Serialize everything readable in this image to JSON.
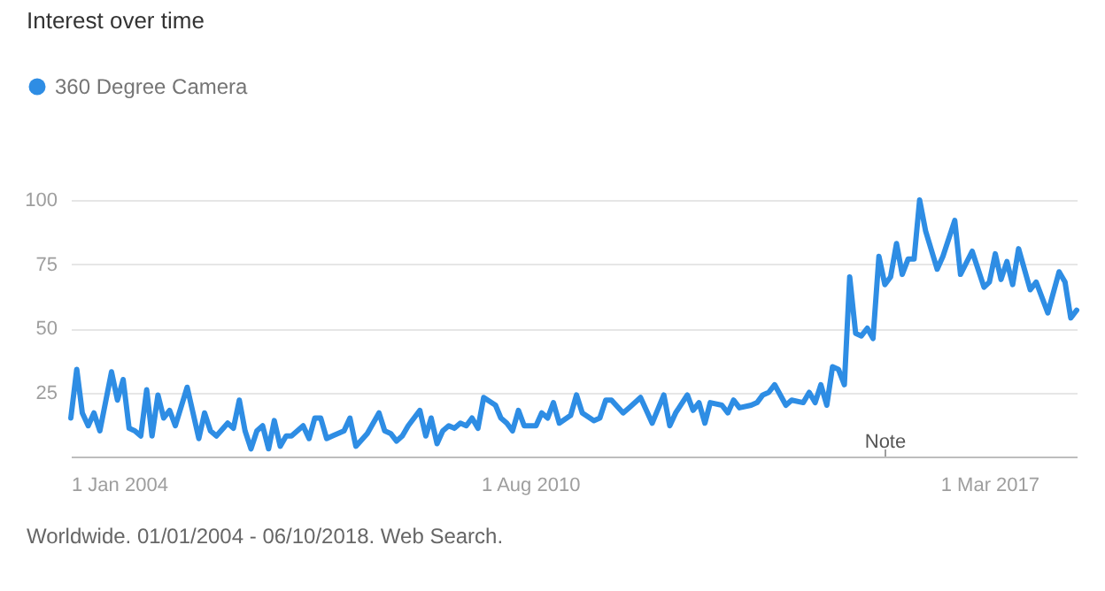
{
  "chart_data": {
    "type": "line",
    "title": "Interest over time",
    "annotations": [
      "Note",
      "Worldwide. 01/01/2004 - 06/10/2018. Web Search."
    ],
    "x": [
      "2004-01",
      "2004-02",
      "2004-03",
      "2004-04",
      "2004-05",
      "2004-06",
      "2004-08",
      "2004-09",
      "2004-10",
      "2004-11",
      "2004-12",
      "2005-01",
      "2005-02",
      "2005-03",
      "2005-04",
      "2005-05",
      "2005-06",
      "2005-07",
      "2005-09",
      "2005-11",
      "2005-12",
      "2006-01",
      "2006-02",
      "2006-04",
      "2006-05",
      "2006-06",
      "2006-07",
      "2006-08",
      "2006-09",
      "2006-10",
      "2006-11",
      "2006-12",
      "2007-01",
      "2007-02",
      "2007-03",
      "2007-05",
      "2007-06",
      "2007-07",
      "2007-08",
      "2007-09",
      "2007-10",
      "2007-12",
      "2008-01",
      "2008-02",
      "2008-04",
      "2008-06",
      "2008-07",
      "2008-08",
      "2008-09",
      "2008-10",
      "2008-11",
      "2009-01",
      "2009-02",
      "2009-03",
      "2009-04",
      "2009-05",
      "2009-06",
      "2009-07",
      "2009-08",
      "2009-09",
      "2009-10",
      "2009-11",
      "2009-12",
      "2010-02",
      "2010-03",
      "2010-04",
      "2010-05",
      "2010-06",
      "2010-07",
      "2010-09",
      "2010-10",
      "2010-11",
      "2010-12",
      "2011-01",
      "2011-03",
      "2011-04",
      "2011-05",
      "2011-07",
      "2011-08",
      "2011-09",
      "2011-10",
      "2011-12",
      "2012-01",
      "2012-03",
      "2012-05",
      "2012-07",
      "2012-08",
      "2012-09",
      "2012-11",
      "2012-12",
      "2013-01",
      "2013-02",
      "2013-03",
      "2013-05",
      "2013-06",
      "2013-07",
      "2013-08",
      "2013-10",
      "2013-11",
      "2013-12",
      "2014-01",
      "2014-02",
      "2014-04",
      "2014-05",
      "2014-07",
      "2014-08",
      "2014-09",
      "2014-10",
      "2014-11",
      "2014-12",
      "2015-01",
      "2015-02",
      "2015-03",
      "2015-04",
      "2015-05",
      "2015-06",
      "2015-07",
      "2015-08",
      "2015-09",
      "2015-10",
      "2015-11",
      "2015-12",
      "2016-01",
      "2016-02",
      "2016-03",
      "2016-04",
      "2016-06",
      "2016-07",
      "2016-09",
      "2016-10",
      "2016-12",
      "2017-02",
      "2017-03",
      "2017-04",
      "2017-05",
      "2017-06",
      "2017-07",
      "2017-08",
      "2017-10",
      "2017-11",
      "2018-01",
      "2018-03",
      "2018-04",
      "2018-05",
      "2018-06"
    ],
    "series": [
      {
        "name": "360 Degree Camera",
        "color": "#2e8de4",
        "values": [
          15,
          34,
          17,
          12,
          17,
          10,
          33,
          22,
          30,
          11,
          10,
          8,
          26,
          8,
          24,
          15,
          18,
          12,
          27,
          7,
          17,
          10,
          8,
          13,
          11,
          22,
          10,
          3,
          10,
          12,
          3,
          14,
          4,
          8,
          8,
          12,
          7,
          15,
          15,
          7,
          8,
          10,
          15,
          4,
          9,
          17,
          10,
          9,
          6,
          8,
          12,
          18,
          8,
          15,
          5,
          10,
          12,
          11,
          13,
          12,
          15,
          11,
          23,
          20,
          15,
          13,
          10,
          18,
          12,
          12,
          17,
          15,
          21,
          13,
          16,
          24,
          17,
          14,
          15,
          22,
          22,
          17,
          19,
          23,
          13,
          24,
          12,
          17,
          24,
          18,
          21,
          13,
          21,
          20,
          17,
          22,
          19,
          20,
          21,
          24,
          25,
          28,
          20,
          22,
          21,
          25,
          21,
          28,
          20,
          35,
          34,
          28,
          70,
          48,
          47,
          50,
          46,
          78,
          67,
          70,
          83,
          71,
          77,
          77,
          100,
          88,
          73,
          78,
          92,
          71,
          80,
          66,
          68,
          79,
          69,
          76,
          67,
          81,
          65,
          68,
          56,
          72,
          68,
          54,
          57
        ]
      }
    ],
    "xlim": [
      "2004-01",
      "2018-06"
    ],
    "xticks": [
      {
        "value": "2004-01-01",
        "label": "1 Jan 2004"
      },
      {
        "value": "2010-08-01",
        "label": "1 Aug 2010"
      },
      {
        "value": "2017-03-01",
        "label": "1 Mar 2017"
      }
    ],
    "ylim": [
      0,
      100
    ],
    "yticks": [
      {
        "value": 0,
        "label": null
      },
      25,
      50,
      75,
      100
    ],
    "grid": "y",
    "legend": "top left",
    "marker": "none",
    "line_style": "solid"
  }
}
